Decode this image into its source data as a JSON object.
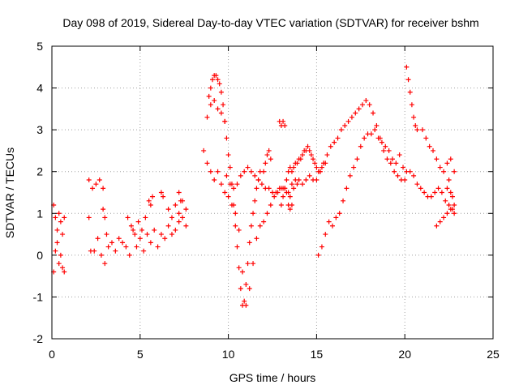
{
  "chart_data": {
    "type": "scatter",
    "title": "Day 098 of 2019, Sidereal Day-to-day VTEC variation (SDTVAR) for receiver bshm",
    "xlabel": "GPS time / hours",
    "ylabel": "SDTVAR / TECUs",
    "xlim": [
      0,
      25
    ],
    "ylim": [
      -2,
      5
    ],
    "xticks": [
      0,
      5,
      10,
      15,
      20,
      25
    ],
    "yticks": [
      -2,
      -1,
      0,
      1,
      2,
      3,
      4,
      5
    ],
    "x_tick_labels": [
      "0",
      "5",
      "10",
      "15",
      "20",
      "25"
    ],
    "y_tick_labels": [
      "-2",
      "-1",
      "0",
      "1",
      "2",
      "3",
      "4",
      "5"
    ],
    "grid": true,
    "marker": "+",
    "marker_color": "#ff0000",
    "series": [
      {
        "name": "SDTVAR",
        "segments": [
          {
            "x": [
              0.1,
              0.2,
              0.3,
              0.4,
              0.5,
              0.6,
              0.7
            ],
            "y": [
              1.2,
              0.9,
              0.6,
              1.0,
              0.8,
              0.5,
              0.9
            ]
          },
          {
            "x": [
              0.1,
              0.2,
              0.3,
              0.4,
              0.5,
              0.6,
              0.7
            ],
            "y": [
              -0.4,
              0.1,
              0.3,
              -0.2,
              0.0,
              -0.3,
              -0.4
            ]
          },
          {
            "x": [
              2.1,
              2.2
            ],
            "y": [
              0.9,
              0.1
            ]
          },
          {
            "x": [
              2.1,
              2.3,
              2.5,
              2.7,
              2.9
            ],
            "y": [
              1.8,
              1.6,
              1.7,
              1.8,
              1.6
            ]
          },
          {
            "x": [
              2.4,
              2.6,
              2.8,
              3.0,
              3.2,
              3.4,
              3.6,
              3.8,
              4.0
            ],
            "y": [
              0.1,
              0.4,
              0.0,
              -0.2,
              0.2,
              0.3,
              0.1,
              0.4,
              0.3
            ]
          },
          {
            "x": [
              2.9,
              3.0,
              3.1
            ],
            "y": [
              1.1,
              0.9,
              0.5
            ]
          },
          {
            "x": [
              4.2,
              4.4,
              4.6,
              4.8,
              5.0,
              5.2,
              5.4,
              5.6,
              5.8,
              6.0,
              6.2,
              6.4,
              6.6,
              6.8,
              7.0,
              7.2,
              7.4,
              7.6
            ],
            "y": [
              0.2,
              0.0,
              0.6,
              0.2,
              0.4,
              0.1,
              0.5,
              0.3,
              0.6,
              0.2,
              0.5,
              0.4,
              0.7,
              0.5,
              0.6,
              0.8,
              0.9,
              0.7
            ]
          },
          {
            "x": [
              4.3,
              4.5,
              4.7,
              4.9,
              5.1,
              5.3
            ],
            "y": [
              0.9,
              0.7,
              0.5,
              0.8,
              0.6,
              0.9
            ]
          },
          {
            "x": [
              5.5,
              5.6,
              5.7
            ],
            "y": [
              1.3,
              1.2,
              1.4
            ]
          },
          {
            "x": [
              6.2,
              6.3
            ],
            "y": [
              1.5,
              1.4
            ]
          },
          {
            "x": [
              6.6,
              6.8,
              7.0,
              7.2,
              7.4,
              7.6
            ],
            "y": [
              1.1,
              0.9,
              1.2,
              1.0,
              1.3,
              1.1
            ]
          },
          {
            "x": [
              7.2,
              7.3
            ],
            "y": [
              1.5,
              1.3
            ]
          },
          {
            "x": [
              8.6,
              8.8,
              9.0,
              9.2,
              9.4,
              9.6,
              9.8,
              10.0,
              10.2,
              10.4,
              10.6,
              10.8,
              11.0,
              11.2,
              11.4,
              11.6,
              11.8,
              12.0,
              12.2,
              12.4,
              12.6,
              12.8,
              13.0,
              13.2,
              13.4,
              13.6,
              13.8,
              14.0,
              14.2,
              14.4,
              14.6,
              14.8,
              15.0,
              15.2,
              15.4,
              15.6,
              15.8,
              16.0,
              16.2,
              16.4,
              16.6,
              16.8,
              17.0,
              17.2,
              17.4,
              17.6,
              17.8,
              18.0,
              18.2,
              18.4,
              18.6,
              18.8,
              19.0,
              19.2,
              19.4,
              19.6,
              19.8,
              20.0
            ],
            "y": [
              2.5,
              2.2,
              2.0,
              1.8,
              2.0,
              1.7,
              1.5,
              1.4,
              1.2,
              1.0,
              0.6,
              -0.4,
              -1.2,
              -0.8,
              -0.2,
              0.4,
              0.7,
              0.8,
              1.0,
              1.2,
              1.4,
              1.5,
              1.6,
              1.6,
              1.5,
              1.7,
              1.8,
              1.8,
              1.7,
              1.8,
              1.9,
              1.8,
              1.8,
              2.0,
              2.2,
              2.4,
              2.6,
              2.7,
              2.8,
              3.0,
              3.1,
              3.2,
              3.3,
              3.4,
              3.5,
              3.6,
              3.7,
              3.6,
              3.4,
              3.1,
              2.8,
              2.5,
              2.3,
              2.2,
              2.0,
              1.9,
              1.8,
              1.8
            ]
          },
          {
            "x": [
              8.9,
              9.0,
              9.1,
              9.2,
              9.3,
              9.4,
              9.5,
              9.6,
              9.7,
              9.8,
              9.9,
              10.0,
              10.1,
              10.2,
              10.3,
              10.4,
              10.5,
              10.6,
              10.7,
              10.8,
              10.9,
              11.0,
              11.1,
              11.2,
              11.3,
              11.4,
              11.5,
              11.6,
              11.7,
              11.8
            ],
            "y": [
              3.8,
              4.0,
              4.2,
              4.3,
              4.3,
              4.2,
              4.1,
              3.9,
              3.6,
              3.2,
              2.8,
              2.4,
              2.1,
              1.7,
              1.2,
              0.7,
              0.2,
              -0.3,
              -0.8,
              -1.2,
              -1.1,
              -0.7,
              -0.2,
              0.3,
              0.7,
              1.0,
              1.3,
              1.6,
              1.8,
              2.0
            ]
          },
          {
            "x": [
              8.8,
              9.0,
              9.2,
              9.4,
              9.6,
              9.8
            ],
            "y": [
              3.3,
              3.6,
              3.7,
              3.5,
              3.4,
              3.2
            ]
          },
          {
            "x": [
              9.9,
              10.1,
              10.3,
              10.5,
              10.7,
              10.9,
              11.1,
              11.3,
              11.5,
              11.7,
              11.9,
              12.1,
              12.3,
              12.5,
              12.7,
              12.9,
              13.1,
              13.3,
              13.5,
              13.7,
              13.9
            ],
            "y": [
              1.9,
              1.7,
              1.6,
              1.7,
              1.9,
              2.0,
              2.1,
              2.0,
              1.9,
              1.8,
              1.7,
              1.6,
              1.6,
              1.5,
              1.5,
              1.6,
              1.6,
              1.5,
              1.4,
              1.6,
              1.7
            ]
          },
          {
            "x": [
              12.0,
              12.1,
              12.2,
              12.3,
              12.4
            ],
            "y": [
              2.0,
              2.2,
              2.4,
              2.5,
              2.3
            ]
          },
          {
            "x": [
              12.9,
              13.0,
              13.1,
              13.2
            ],
            "y": [
              3.2,
              3.1,
              3.2,
              3.1
            ]
          },
          {
            "x": [
              13.0,
              13.1,
              13.2,
              13.3,
              13.4,
              13.5,
              13.6,
              13.7,
              13.8,
              13.9,
              14.0,
              14.1,
              14.2,
              14.3,
              14.4,
              14.5,
              14.6,
              14.7,
              14.8,
              14.9,
              15.0,
              15.1,
              15.2,
              15.3,
              15.4,
              15.5
            ],
            "y": [
              1.2,
              1.4,
              1.6,
              1.8,
              2.0,
              2.1,
              2.0,
              2.1,
              2.2,
              2.2,
              2.3,
              2.3,
              2.4,
              2.5,
              2.5,
              2.6,
              2.5,
              2.4,
              2.3,
              2.2,
              2.1,
              2.0,
              2.0,
              2.1,
              2.2,
              2.2
            ]
          },
          {
            "x": [
              13.4,
              13.5,
              13.6
            ],
            "y": [
              1.2,
              1.1,
              1.2
            ]
          },
          {
            "x": [
              15.1,
              15.3,
              15.5,
              15.7,
              15.9,
              16.1,
              16.3,
              16.5,
              16.7,
              16.9,
              17.1,
              17.3,
              17.5,
              17.7,
              17.9,
              18.1,
              18.3,
              18.5,
              18.7,
              18.9,
              19.1,
              19.3,
              19.5,
              19.7,
              19.9,
              20.1,
              20.3,
              20.5,
              20.7,
              20.9,
              21.1,
              21.3,
              21.5,
              21.7,
              21.9,
              22.1,
              22.3,
              22.5,
              22.7
            ],
            "y": [
              0.0,
              0.2,
              0.5,
              0.8,
              0.7,
              0.9,
              1.0,
              1.3,
              1.6,
              1.9,
              2.1,
              2.3,
              2.6,
              2.8,
              2.9,
              2.9,
              3.0,
              2.8,
              2.7,
              2.6,
              2.5,
              2.3,
              2.2,
              2.4,
              2.1,
              2.0,
              2.0,
              1.9,
              1.7,
              1.6,
              1.5,
              1.4,
              1.4,
              1.5,
              1.6,
              1.5,
              1.3,
              1.2,
              1.1
            ]
          },
          {
            "x": [
              20.1,
              20.2,
              20.3,
              20.4,
              20.5,
              20.6,
              20.7
            ],
            "y": [
              4.5,
              4.2,
              3.9,
              3.6,
              3.3,
              3.1,
              3.0
            ]
          },
          {
            "x": [
              21.0,
              21.2,
              21.4,
              21.6,
              21.8,
              22.0,
              22.2,
              22.4,
              22.6,
              22.8
            ],
            "y": [
              3.0,
              2.8,
              2.6,
              2.5,
              2.3,
              2.1,
              2.0,
              2.2,
              2.3,
              2.0
            ]
          },
          {
            "x": [
              21.8,
              22.0,
              22.2,
              22.4,
              22.6,
              22.8
            ],
            "y": [
              0.7,
              0.8,
              0.9,
              1.0,
              1.1,
              1.2
            ]
          },
          {
            "x": [
              22.4,
              22.5,
              22.6,
              22.7,
              22.8
            ],
            "y": [
              1.6,
              1.8,
              1.5,
              1.4,
              1.0
            ]
          }
        ]
      }
    ]
  }
}
